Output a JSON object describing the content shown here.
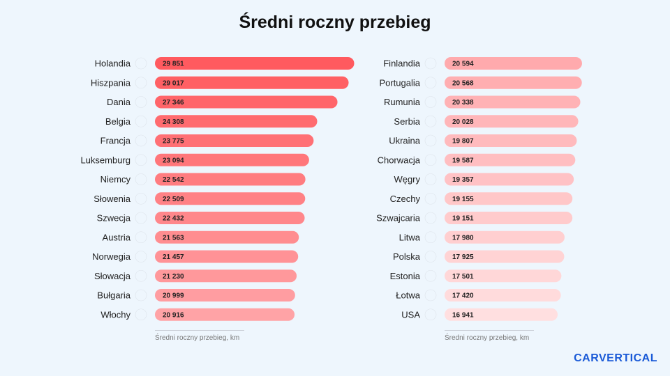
{
  "chart_data": [
    {
      "type": "bar",
      "orientation": "horizontal",
      "title": "Średni roczny przebieg",
      "xlabel": "Średni roczny przebieg, km",
      "categories": [
        "Holandia",
        "Hiszpania",
        "Dania",
        "Belgia",
        "Francja",
        "Luksemburg",
        "Niemcy",
        "Słowenia",
        "Szwecja",
        "Austria",
        "Norwegia",
        "Słowacja",
        "Bułgaria",
        "Włochy"
      ],
      "values": [
        29851,
        29017,
        27346,
        24308,
        23775,
        23094,
        22542,
        22509,
        22432,
        21563,
        21457,
        21230,
        20999,
        20916
      ],
      "value_labels": [
        "29 851",
        "29 017",
        "27 346",
        "24 308",
        "23 775",
        "23 094",
        "22 542",
        "22 509",
        "22 432",
        "21 563",
        "21 457",
        "21 230",
        "20 999",
        "20 916"
      ],
      "flags": [
        "nl",
        "es",
        "dk",
        "be",
        "fr",
        "lu",
        "de",
        "si",
        "se",
        "at",
        "no",
        "sk",
        "bg",
        "it"
      ],
      "colors": {
        "start": "#ff5a5f",
        "end": "#ffa3a6"
      }
    },
    {
      "type": "bar",
      "orientation": "horizontal",
      "xlabel": "Średni roczny przebieg, km",
      "categories": [
        "Finlandia",
        "Portugalia",
        "Rumunia",
        "Serbia",
        "Ukraina",
        "Chorwacja",
        "Węgry",
        "Czechy",
        "Szwajcaria",
        "Litwa",
        "Polska",
        "Estonia",
        "Łotwa",
        "USA"
      ],
      "values": [
        20594,
        20568,
        20338,
        20028,
        19807,
        19587,
        19357,
        19155,
        19151,
        17980,
        17925,
        17501,
        17420,
        16941
      ],
      "value_labels": [
        "20 594",
        "20 568",
        "20 338",
        "20 028",
        "19 807",
        "19 587",
        "19 357",
        "19 155",
        "19 151",
        "17 980",
        "17 925",
        "17 501",
        "17 420",
        "16 941"
      ],
      "flags": [
        "fi",
        "pt",
        "ro",
        "rs",
        "ua",
        "hr",
        "hu",
        "cz",
        "ch",
        "lt",
        "pl",
        "ee",
        "lv",
        "us"
      ],
      "colors": {
        "start": "#ffaaad",
        "end": "#ffdfe0"
      }
    }
  ],
  "brand": {
    "logo_text": "CARVERTICAL",
    "color": "#1a5ad7"
  },
  "background": "#eef6fd"
}
